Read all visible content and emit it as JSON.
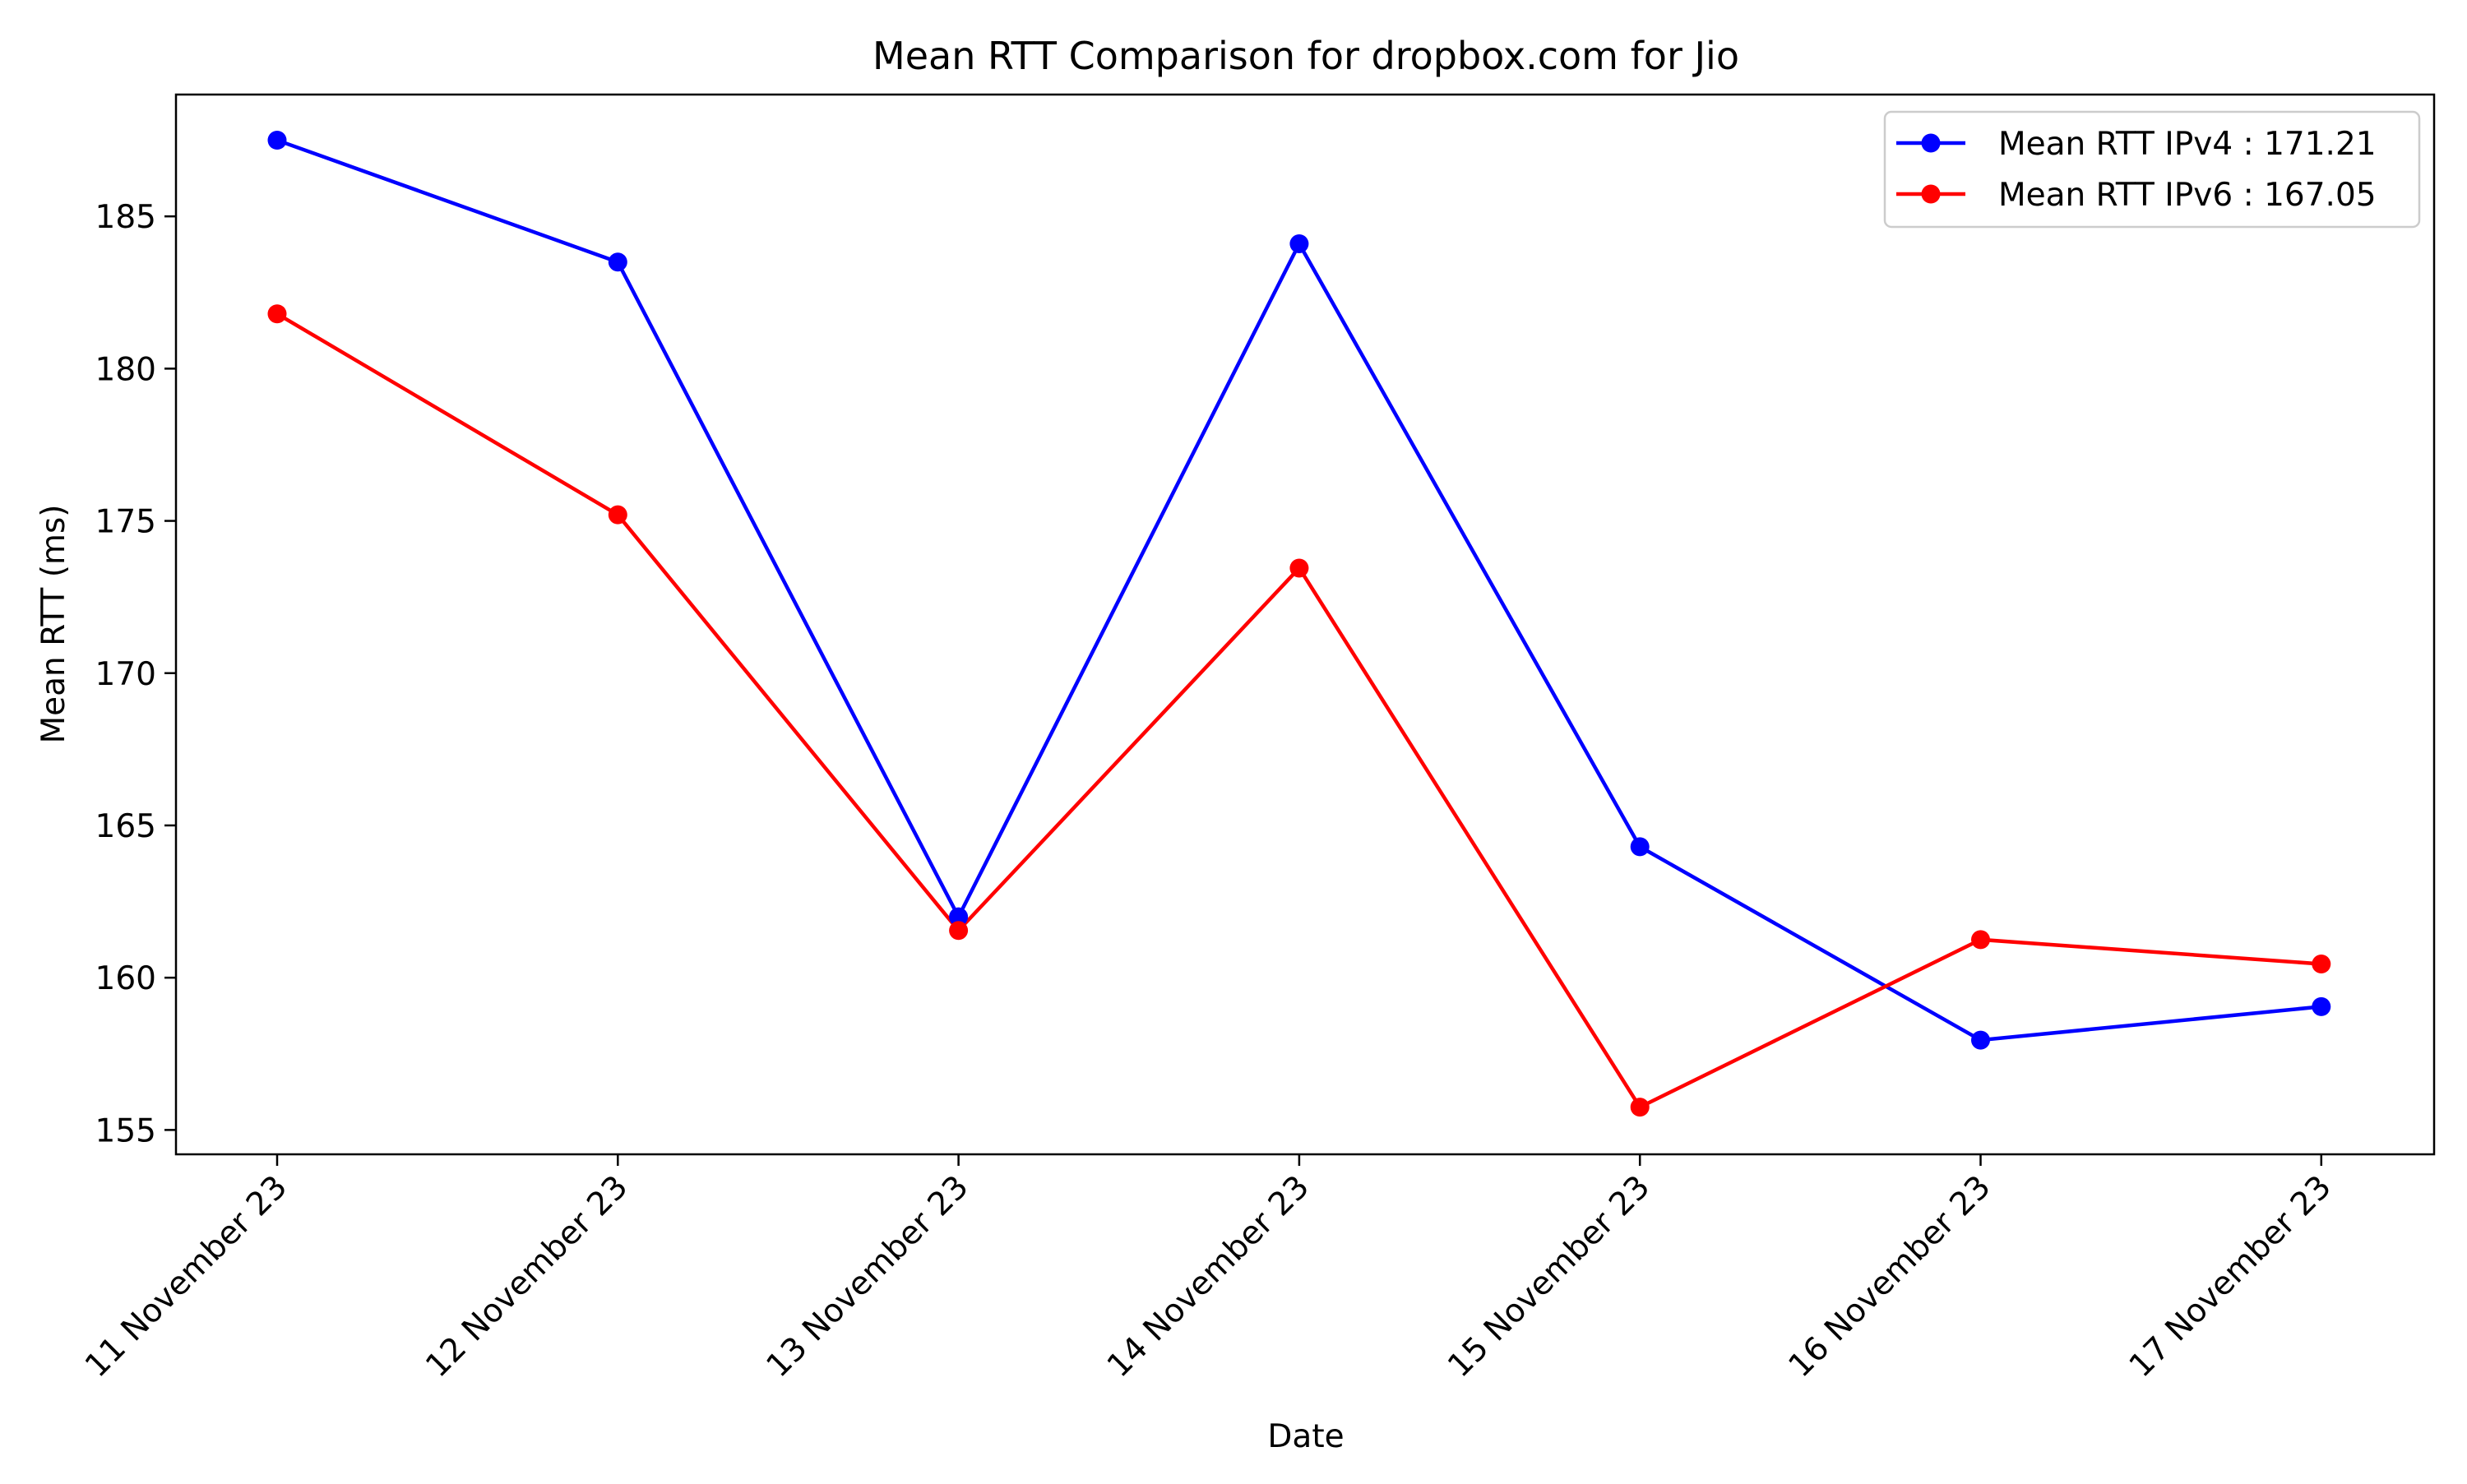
{
  "chart_data": {
    "type": "line",
    "title": "Mean RTT Comparison for dropbox.com for Jio",
    "xlabel": "Date",
    "ylabel": "Mean RTT (ms)",
    "categories": [
      "11 November 23",
      "12 November 23",
      "13 November 23",
      "14 November 23",
      "15 November 23",
      "16 November 23",
      "17 November 23"
    ],
    "series": [
      {
        "name": "Mean RTT IPv4 : 171.21",
        "color": "#0000ff",
        "values": [
          187.5,
          183.5,
          162.0,
          184.1,
          164.3,
          157.95,
          159.05
        ]
      },
      {
        "name": "Mean RTT IPv6 : 167.05",
        "color": "#ff0000",
        "values": [
          181.8,
          175.2,
          161.55,
          173.45,
          155.75,
          161.25,
          160.45
        ]
      }
    ],
    "ylim": [
      154.2,
      189.0
    ],
    "yticks": [
      155,
      160,
      165,
      170,
      175,
      180,
      185
    ],
    "legend_position": "top-right",
    "grid": false
  }
}
